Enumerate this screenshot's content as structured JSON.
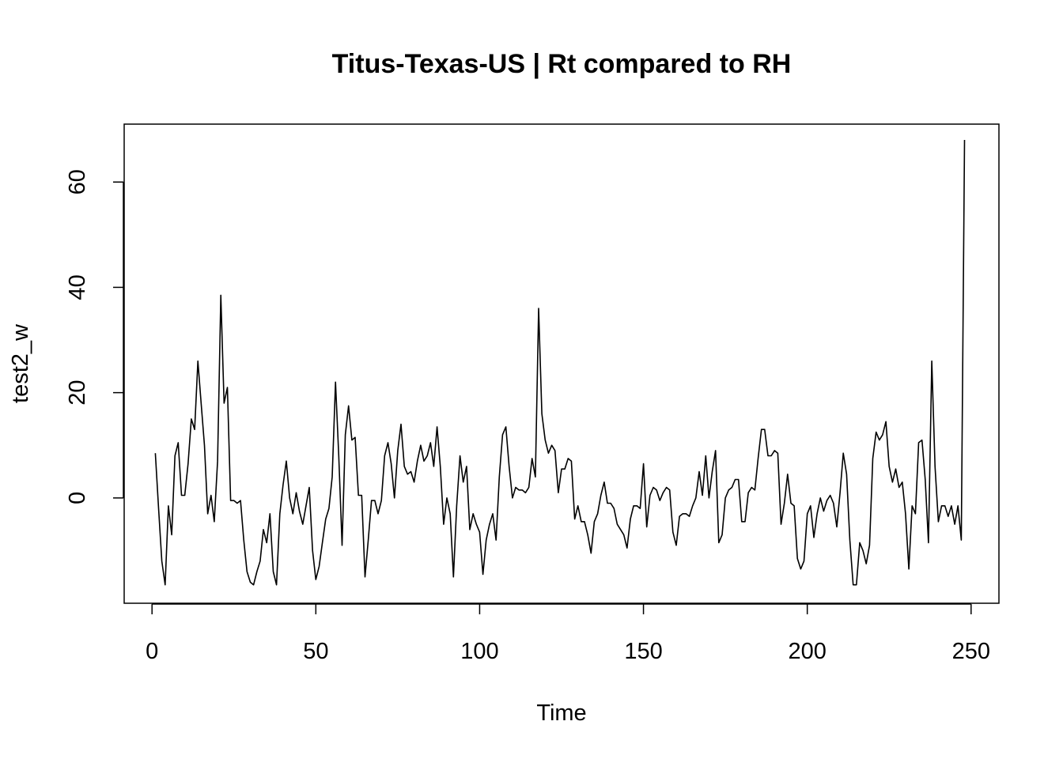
{
  "chart_data": {
    "type": "line",
    "title": "Titus-Texas-US | Rt compared to RH",
    "xlabel": "Time",
    "ylabel": "test2_w",
    "xlim": [
      -8.5,
      258.5
    ],
    "ylim": [
      -20,
      71
    ],
    "x_ticks": [
      0,
      50,
      100,
      150,
      200,
      250
    ],
    "y_ticks": [
      0,
      20,
      40,
      60
    ],
    "grid": false,
    "series": [
      {
        "x_start": 1,
        "x_step": 1,
        "values": [
          8.5,
          -2,
          -12,
          -16.5,
          -1.5,
          -7,
          8,
          10.5,
          0.5,
          0.5,
          6.5,
          15,
          13,
          26,
          18,
          10,
          -3,
          0.5,
          -4.5,
          7,
          38.5,
          18,
          21,
          -0.5,
          -0.5,
          -1,
          -0.5,
          -8,
          -14,
          -16,
          -16.5,
          -14,
          -12,
          -6,
          -8.5,
          -3,
          -14,
          -16.5,
          -3,
          2.5,
          7,
          0,
          -3,
          1,
          -2.5,
          -5,
          -1.5,
          2,
          -10,
          -15.5,
          -13,
          -8.5,
          -4,
          -2,
          4,
          22,
          8,
          -9,
          12,
          17.5,
          11,
          11.5,
          0.5,
          0.5,
          -15,
          -8,
          -0.5,
          -0.5,
          -3,
          -0.5,
          8,
          10.5,
          6.5,
          0,
          9,
          14,
          6,
          4.5,
          5,
          3,
          7,
          10,
          7,
          8,
          10.5,
          6,
          13.5,
          6,
          -5,
          0,
          -3,
          -15,
          -1.5,
          8,
          3,
          6,
          -6,
          -3,
          -5,
          -6.5,
          -14.5,
          -8,
          -5,
          -3,
          -8,
          4,
          12,
          13.5,
          6,
          0,
          2,
          1.5,
          1.5,
          1,
          2,
          7.5,
          4,
          36,
          16,
          11,
          8.5,
          10,
          9,
          1,
          5.5,
          5.5,
          7.5,
          7,
          -4,
          -1.5,
          -4.5,
          -4.5,
          -7,
          -10.5,
          -4.5,
          -3,
          0.5,
          3,
          -1,
          -1,
          -2,
          -5,
          -6,
          -7,
          -9.5,
          -4,
          -1.5,
          -1.5,
          -2,
          6.5,
          -5.5,
          0.5,
          2,
          1.5,
          -0.5,
          1,
          2,
          1.5,
          -6.5,
          -9,
          -3.5,
          -3,
          -3,
          -3.5,
          -1.5,
          0,
          5,
          0.5,
          8,
          0,
          5,
          9,
          -8.5,
          -7,
          0,
          1.5,
          2,
          3.5,
          3.5,
          -4.5,
          -4.5,
          1,
          2,
          1.5,
          7.5,
          13,
          13,
          8,
          8,
          9,
          8.5,
          -5,
          -1,
          4.5,
          -1,
          -1.5,
          -11.5,
          -13.5,
          -12,
          -3,
          -1.5,
          -7.5,
          -3,
          0,
          -2.5,
          -0.5,
          0.5,
          -1,
          -5.5,
          1,
          8.5,
          4.5,
          -8,
          -16.5,
          -16.5,
          -8.5,
          -10,
          -12.5,
          -9,
          7.5,
          12.5,
          11,
          12,
          14.5,
          6,
          3,
          5.5,
          2,
          3,
          -3,
          -13.5,
          -1.5,
          -3,
          10.5,
          11,
          3.5,
          -8.5,
          26,
          6,
          -4.5,
          -1.5,
          -1.5,
          -3.5,
          -1.5,
          -5,
          -1.5,
          -8,
          68
        ]
      }
    ]
  }
}
